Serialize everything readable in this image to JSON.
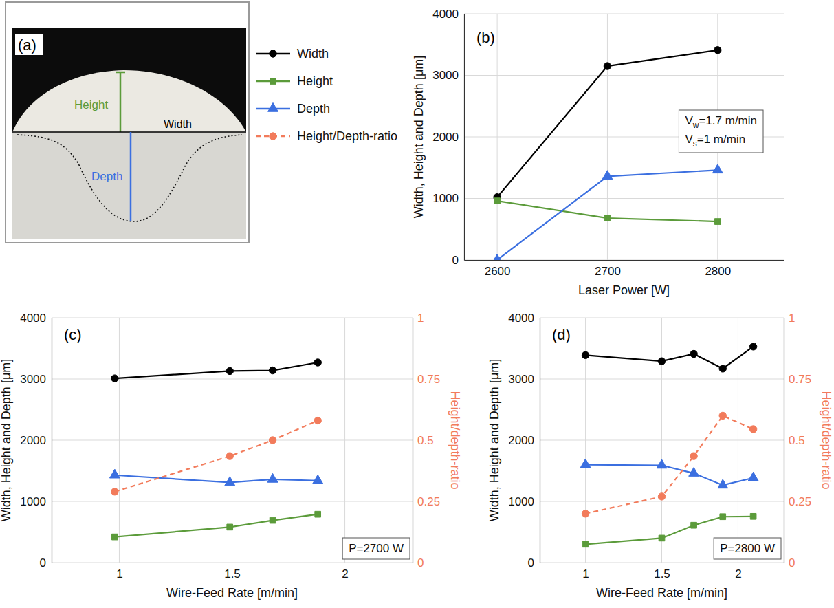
{
  "panel_a": {
    "label": "(a)",
    "height_label": "Height",
    "width_label": "Width",
    "depth_label": "Depth"
  },
  "chart_data": [
    {
      "type": "line",
      "panel_label": "(b)",
      "xlabel": "Laser Power [W]",
      "ylabel": "Width, Height and Depth [μm]",
      "x": [
        2600,
        2700,
        2800
      ],
      "xlim": [
        2570,
        2860
      ],
      "xticks": [
        2600,
        2700,
        2800
      ],
      "ylim": [
        0,
        4000
      ],
      "yticks": [
        0,
        1000,
        2000,
        3000,
        4000
      ],
      "grid": true,
      "annotations": [
        {
          "symbol": "V",
          "subscript": "w",
          "text": "=1.7 m/min"
        },
        {
          "symbol": "V",
          "subscript": "s",
          "text": "=1 m/min"
        }
      ],
      "series": [
        {
          "name": "Width",
          "color": "#000000",
          "marker": "circle",
          "line_style": "solid",
          "values": [
            1020,
            3150,
            3410
          ]
        },
        {
          "name": "Height",
          "color": "#5b9b3a",
          "marker": "square",
          "line_style": "solid",
          "values": [
            960,
            680,
            625
          ]
        },
        {
          "name": "Depth",
          "color": "#3b6fe0",
          "marker": "triangle",
          "line_style": "solid",
          "values": [
            0,
            1360,
            1460
          ]
        }
      ]
    },
    {
      "type": "line",
      "panel_label": "(c)",
      "xlabel": "Wire-Feed Rate [m/min]",
      "ylabel": "Width, Height and Depth [μm]",
      "y2label": "Height/depth-ratio",
      "x": [
        0.98,
        1.49,
        1.68,
        1.88
      ],
      "xlim": [
        0.7,
        2.3
      ],
      "xticks": [
        1,
        1.5,
        2
      ],
      "ylim": [
        0,
        4000
      ],
      "yticks": [
        0,
        1000,
        2000,
        3000,
        4000
      ],
      "y2lim": [
        0,
        1
      ],
      "y2ticks": [
        0,
        0.25,
        0.5,
        0.75,
        1
      ],
      "grid": true,
      "annotations": [
        {
          "text": "P=2700 W"
        }
      ],
      "series": [
        {
          "name": "Width",
          "color": "#000000",
          "marker": "circle",
          "line_style": "solid",
          "values": [
            3010,
            3130,
            3140,
            3270
          ]
        },
        {
          "name": "Height",
          "color": "#5b9b3a",
          "marker": "square",
          "line_style": "solid",
          "values": [
            420,
            580,
            690,
            790
          ]
        },
        {
          "name": "Depth",
          "color": "#3b6fe0",
          "marker": "triangle",
          "line_style": "solid",
          "values": [
            1430,
            1310,
            1360,
            1340
          ]
        },
        {
          "name": "Height/Depth-ratio",
          "color": "#f27b5b",
          "marker": "circle",
          "line_style": "dashed",
          "axis": "y2",
          "values": [
            0.29,
            0.435,
            0.5,
            0.58
          ]
        }
      ]
    },
    {
      "type": "line",
      "panel_label": "(d)",
      "xlabel": "Wire-Feed Rate [m/min]",
      "ylabel": "Width, Height and Depth [μm]",
      "y2label": "Height/depth-ratio",
      "x": [
        1,
        1.5,
        1.71,
        1.9,
        2.1
      ],
      "xlim": [
        0.7,
        2.3
      ],
      "xticks": [
        1,
        1.5,
        2
      ],
      "ylim": [
        0,
        4000
      ],
      "yticks": [
        0,
        1000,
        2000,
        3000,
        4000
      ],
      "y2lim": [
        0,
        1
      ],
      "y2ticks": [
        0,
        0.25,
        0.5,
        0.75,
        1
      ],
      "grid": true,
      "annotations": [
        {
          "text": "P=2800 W"
        }
      ],
      "series": [
        {
          "name": "Width",
          "color": "#000000",
          "marker": "circle",
          "line_style": "solid",
          "values": [
            3390,
            3290,
            3410,
            3170,
            3530
          ]
        },
        {
          "name": "Height",
          "color": "#5b9b3a",
          "marker": "square",
          "line_style": "solid",
          "values": [
            300,
            400,
            610,
            750,
            755
          ]
        },
        {
          "name": "Depth",
          "color": "#3b6fe0",
          "marker": "triangle",
          "line_style": "solid",
          "values": [
            1600,
            1590,
            1460,
            1265,
            1385
          ]
        },
        {
          "name": "Height/Depth-ratio",
          "color": "#f27b5b",
          "marker": "circle",
          "line_style": "dashed",
          "axis": "y2",
          "values": [
            0.2,
            0.27,
            0.435,
            0.6,
            0.545
          ]
        }
      ]
    }
  ]
}
